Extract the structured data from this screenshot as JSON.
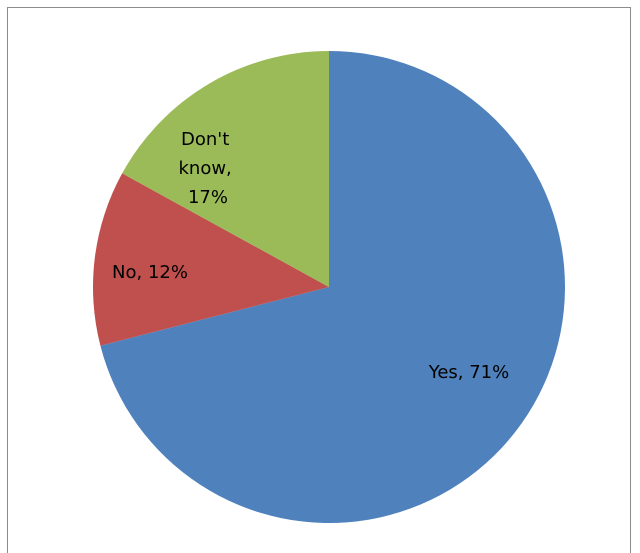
{
  "chart_data": {
    "type": "pie",
    "title": "",
    "legend": "none",
    "slices": [
      {
        "name": "Yes",
        "value": 71,
        "label": "Yes, 71%",
        "color": "#4f81bd"
      },
      {
        "name": "No",
        "value": 12,
        "label": "No, 12%",
        "color": "#c0504d"
      },
      {
        "name": "Don't know",
        "value": 17,
        "label_lines": [
          "Don't",
          "know,",
          "17%"
        ],
        "color": "#9bbb59"
      }
    ]
  }
}
